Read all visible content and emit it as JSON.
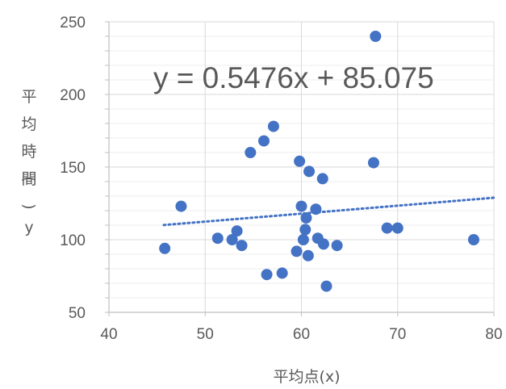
{
  "chart_data": {
    "type": "scatter",
    "title": "",
    "xlabel": "平均点(x)",
    "ylabel": "平均時間(y)",
    "xlim": [
      40,
      80
    ],
    "ylim": [
      50,
      250
    ],
    "x_ticks": [
      "40",
      "50",
      "60",
      "70",
      "80"
    ],
    "y_ticks": [
      "50",
      "100",
      "150",
      "200",
      "250"
    ],
    "grid": true,
    "legend": "none",
    "marker_color": "#4472C4",
    "trendline": {
      "equation": "y = 0.5476x + 85.075",
      "slope": 0.5476,
      "intercept": 85.075,
      "x_range": [
        45.7,
        80
      ],
      "style": "dotted",
      "color": "#4472C4"
    },
    "series": [
      {
        "points": [
          [
            45.8,
            94
          ],
          [
            47.5,
            123
          ],
          [
            51.3,
            101
          ],
          [
            52.8,
            100
          ],
          [
            53.3,
            106
          ],
          [
            53.8,
            96
          ],
          [
            54.7,
            160
          ],
          [
            56.1,
            168
          ],
          [
            56.4,
            76
          ],
          [
            57.1,
            178
          ],
          [
            58.0,
            77
          ],
          [
            59.5,
            92
          ],
          [
            59.8,
            154
          ],
          [
            60.0,
            123
          ],
          [
            60.2,
            100
          ],
          [
            60.4,
            107
          ],
          [
            60.5,
            115
          ],
          [
            60.7,
            89
          ],
          [
            60.8,
            147
          ],
          [
            61.5,
            121
          ],
          [
            61.7,
            101
          ],
          [
            62.2,
            142
          ],
          [
            62.3,
            97
          ],
          [
            62.6,
            68
          ],
          [
            63.7,
            96
          ],
          [
            67.5,
            153
          ],
          [
            67.7,
            240
          ],
          [
            68.9,
            108
          ],
          [
            70.0,
            108
          ],
          [
            77.9,
            100
          ]
        ]
      }
    ]
  }
}
